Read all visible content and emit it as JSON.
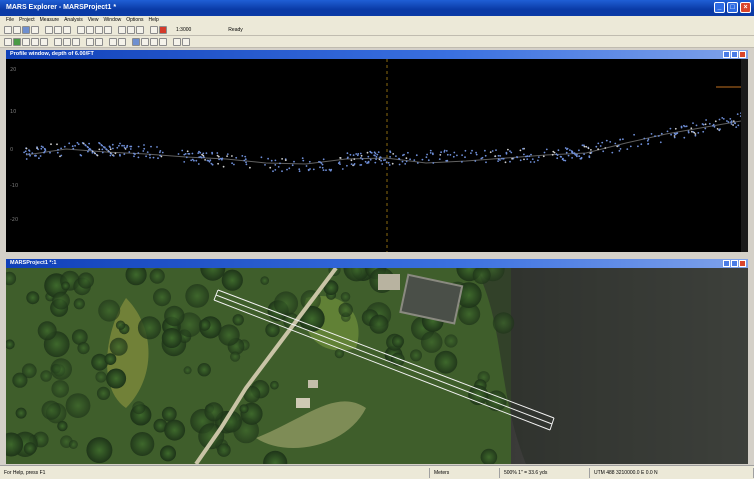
{
  "app": {
    "title": "MARS Explorer - MARSProject1 *",
    "menu": [
      "File",
      "Project",
      "Measure",
      "Analysis",
      "View",
      "Window",
      "Options",
      "Help"
    ]
  },
  "toolbar": {
    "scale_value": "1:3000",
    "ready_label": "Ready"
  },
  "profile_window": {
    "title": "Profile window, depth of 6.00/FT",
    "y_ticks": [
      "20",
      "10",
      "0",
      "-10",
      "-20"
    ]
  },
  "map_window": {
    "title": "MARSProject1 *:1"
  },
  "status": {
    "left": "For Help, press F1",
    "units": "Meters",
    "zoom": "500% 1\" = 33.6 yds",
    "coords": "UTM 488 3210000.0 E 0.0 N"
  },
  "colors": {
    "title_blue": "#0a3aa6",
    "profile_points": "#6f8fd8",
    "ground_line": "#8a8a8a"
  }
}
